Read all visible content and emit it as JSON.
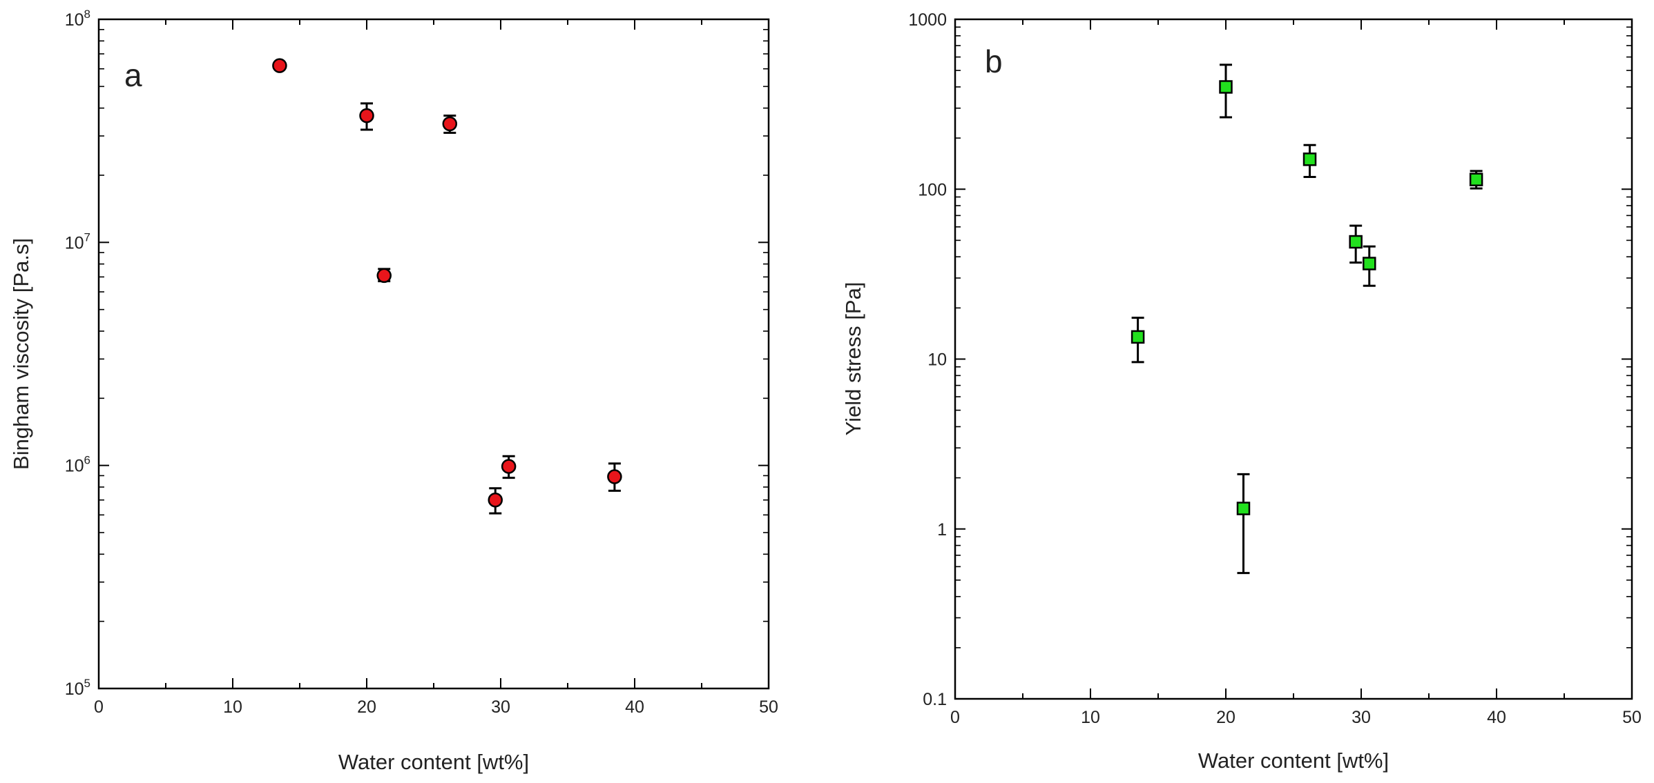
{
  "chart_data": [
    {
      "panel_label": "a",
      "type": "scatter",
      "xlabel": "Water content [wt%]",
      "ylabel": "Bingham viscosity [Pa.s]",
      "xlim": [
        0,
        50
      ],
      "ylim": [
        100000,
        100000000
      ],
      "yscale": "log",
      "x_ticks": [
        0,
        10,
        20,
        30,
        40,
        50
      ],
      "y_ticks": [
        {
          "value": 100000,
          "base": "10",
          "exp": "5"
        },
        {
          "value": 1000000,
          "base": "10",
          "exp": "6"
        },
        {
          "value": 10000000,
          "base": "10",
          "exp": "7"
        },
        {
          "value": 100000000,
          "base": "10",
          "exp": "8"
        }
      ],
      "marker": "circle",
      "color": "#e8151b",
      "points": [
        {
          "x": 13.5,
          "y": 62000000,
          "err_low": 62000000,
          "err_high": 62000000
        },
        {
          "x": 20.0,
          "y": 37000000,
          "err_low": 32000000,
          "err_high": 42000000
        },
        {
          "x": 21.3,
          "y": 7100000,
          "err_low": 6700000,
          "err_high": 7600000
        },
        {
          "x": 26.2,
          "y": 34000000,
          "err_low": 31000000,
          "err_high": 37000000
        },
        {
          "x": 29.6,
          "y": 700000,
          "err_low": 610000,
          "err_high": 790000
        },
        {
          "x": 30.6,
          "y": 990000,
          "err_low": 880000,
          "err_high": 1100000
        },
        {
          "x": 38.5,
          "y": 890000,
          "err_low": 770000,
          "err_high": 1020000
        }
      ]
    },
    {
      "panel_label": "b",
      "type": "scatter",
      "xlabel": "Water content [wt%]",
      "ylabel": "Yield stress [Pa]",
      "xlim": [
        0,
        50
      ],
      "ylim": [
        0.1,
        1000
      ],
      "yscale": "log",
      "x_ticks": [
        0,
        10,
        20,
        30,
        40,
        50
      ],
      "y_ticks": [
        {
          "value": 0.1,
          "label": "0.1"
        },
        {
          "value": 1,
          "label": "1"
        },
        {
          "value": 10,
          "label": "10"
        },
        {
          "value": 100,
          "label": "100"
        },
        {
          "value": 1000,
          "label": "1000"
        }
      ],
      "marker": "square",
      "color": "#22e01e",
      "points": [
        {
          "x": 13.5,
          "y": 13.5,
          "err_low": 9.6,
          "err_high": 17.5
        },
        {
          "x": 20.0,
          "y": 400,
          "err_low": 265,
          "err_high": 540
        },
        {
          "x": 21.3,
          "y": 1.32,
          "err_low": 0.55,
          "err_high": 2.1
        },
        {
          "x": 26.2,
          "y": 150,
          "err_low": 118,
          "err_high": 182
        },
        {
          "x": 29.6,
          "y": 49,
          "err_low": 37,
          "err_high": 61
        },
        {
          "x": 30.6,
          "y": 36.5,
          "err_low": 27,
          "err_high": 46
        },
        {
          "x": 38.5,
          "y": 114,
          "err_low": 101,
          "err_high": 128
        }
      ]
    }
  ]
}
